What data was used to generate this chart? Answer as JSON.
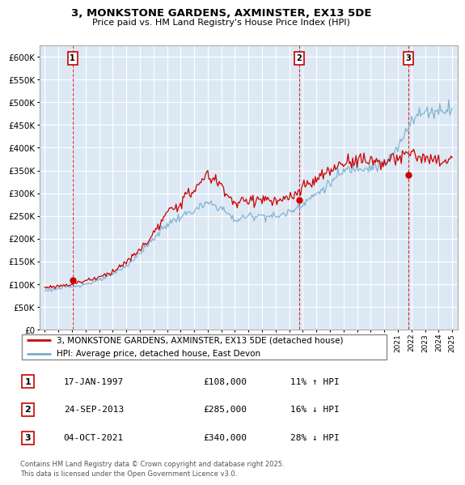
{
  "title": "3, MONKSTONE GARDENS, AXMINSTER, EX13 5DE",
  "subtitle": "Price paid vs. HM Land Registry's House Price Index (HPI)",
  "ylim": [
    0,
    625000
  ],
  "yticks": [
    0,
    50000,
    100000,
    150000,
    200000,
    250000,
    300000,
    350000,
    400000,
    450000,
    500000,
    550000,
    600000
  ],
  "xlim_start": 1994.6,
  "xlim_end": 2025.4,
  "legend_line1": "3, MONKSTONE GARDENS, AXMINSTER, EX13 5DE (detached house)",
  "legend_line2": "HPI: Average price, detached house, East Devon",
  "sales": [
    {
      "date_num": 1997.04,
      "price": 108000,
      "label": "1"
    },
    {
      "date_num": 2013.73,
      "price": 285000,
      "label": "2"
    },
    {
      "date_num": 2021.76,
      "price": 340000,
      "label": "3"
    }
  ],
  "table_rows": [
    {
      "num": "1",
      "date": "17-JAN-1997",
      "price": "£108,000",
      "info": "11% ↑ HPI"
    },
    {
      "num": "2",
      "date": "24-SEP-2013",
      "price": "£285,000",
      "info": "16% ↓ HPI"
    },
    {
      "num": "3",
      "date": "04-OCT-2021",
      "price": "£340,000",
      "info": "28% ↓ HPI"
    }
  ],
  "footer": "Contains HM Land Registry data © Crown copyright and database right 2025.\nThis data is licensed under the Open Government Licence v3.0.",
  "line_color_red": "#cc0000",
  "line_color_blue": "#7aadcf",
  "marker_box_color": "#cc0000",
  "chart_bg": "#dce9f5"
}
